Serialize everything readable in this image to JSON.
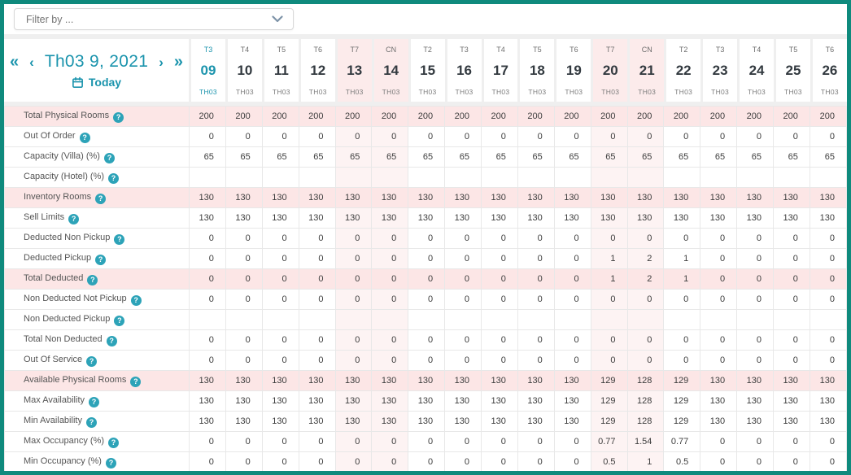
{
  "colors": {
    "frame_border": "#0f8a7d",
    "accent": "#1b94ad",
    "highlight_row": "#fce6e6",
    "weekend_header": "#fcebeb",
    "weekend_cell": "#fdf3f3"
  },
  "filter": {
    "placeholder": "Filter by ..."
  },
  "nav": {
    "fast_backward": "«",
    "prev": "‹",
    "title": "Th03 9, 2021",
    "next": "›",
    "fast_forward": "»",
    "today_label": "Today"
  },
  "help_icon": "?",
  "columns": [
    {
      "dow": "T3",
      "day": "09",
      "month": "TH03",
      "today": true,
      "weekend": false
    },
    {
      "dow": "T4",
      "day": "10",
      "month": "TH03",
      "today": false,
      "weekend": false
    },
    {
      "dow": "T5",
      "day": "11",
      "month": "TH03",
      "today": false,
      "weekend": false
    },
    {
      "dow": "T6",
      "day": "12",
      "month": "TH03",
      "today": false,
      "weekend": false
    },
    {
      "dow": "T7",
      "day": "13",
      "month": "TH03",
      "today": false,
      "weekend": true
    },
    {
      "dow": "CN",
      "day": "14",
      "month": "TH03",
      "today": false,
      "weekend": true
    },
    {
      "dow": "T2",
      "day": "15",
      "month": "TH03",
      "today": false,
      "weekend": false
    },
    {
      "dow": "T3",
      "day": "16",
      "month": "TH03",
      "today": false,
      "weekend": false
    },
    {
      "dow": "T4",
      "day": "17",
      "month": "TH03",
      "today": false,
      "weekend": false
    },
    {
      "dow": "T5",
      "day": "18",
      "month": "TH03",
      "today": false,
      "weekend": false
    },
    {
      "dow": "T6",
      "day": "19",
      "month": "TH03",
      "today": false,
      "weekend": false
    },
    {
      "dow": "T7",
      "day": "20",
      "month": "TH03",
      "today": false,
      "weekend": true
    },
    {
      "dow": "CN",
      "day": "21",
      "month": "TH03",
      "today": false,
      "weekend": true
    },
    {
      "dow": "T2",
      "day": "22",
      "month": "TH03",
      "today": false,
      "weekend": false
    },
    {
      "dow": "T3",
      "day": "23",
      "month": "TH03",
      "today": false,
      "weekend": false
    },
    {
      "dow": "T4",
      "day": "24",
      "month": "TH03",
      "today": false,
      "weekend": false
    },
    {
      "dow": "T5",
      "day": "25",
      "month": "TH03",
      "today": false,
      "weekend": false
    },
    {
      "dow": "T6",
      "day": "26",
      "month": "TH03",
      "today": false,
      "weekend": false
    }
  ],
  "rows": [
    {
      "label": "Total Physical Rooms",
      "highlight": true,
      "values": [
        "200",
        "200",
        "200",
        "200",
        "200",
        "200",
        "200",
        "200",
        "200",
        "200",
        "200",
        "200",
        "200",
        "200",
        "200",
        "200",
        "200",
        "200"
      ]
    },
    {
      "label": "Out Of Order",
      "highlight": false,
      "values": [
        "0",
        "0",
        "0",
        "0",
        "0",
        "0",
        "0",
        "0",
        "0",
        "0",
        "0",
        "0",
        "0",
        "0",
        "0",
        "0",
        "0",
        "0"
      ]
    },
    {
      "label": "Capacity (Villa) (%)",
      "highlight": false,
      "values": [
        "65",
        "65",
        "65",
        "65",
        "65",
        "65",
        "65",
        "65",
        "65",
        "65",
        "65",
        "65",
        "65",
        "65",
        "65",
        "65",
        "65",
        "65"
      ]
    },
    {
      "label": "Capacity (Hotel) (%)",
      "highlight": false,
      "values": [
        "",
        "",
        "",
        "",
        "",
        "",
        "",
        "",
        "",
        "",
        "",
        "",
        "",
        "",
        "",
        "",
        "",
        ""
      ]
    },
    {
      "label": "Inventory Rooms",
      "highlight": true,
      "values": [
        "130",
        "130",
        "130",
        "130",
        "130",
        "130",
        "130",
        "130",
        "130",
        "130",
        "130",
        "130",
        "130",
        "130",
        "130",
        "130",
        "130",
        "130"
      ]
    },
    {
      "label": "Sell Limits",
      "highlight": false,
      "values": [
        "130",
        "130",
        "130",
        "130",
        "130",
        "130",
        "130",
        "130",
        "130",
        "130",
        "130",
        "130",
        "130",
        "130",
        "130",
        "130",
        "130",
        "130"
      ]
    },
    {
      "label": "Deducted Non Pickup",
      "highlight": false,
      "values": [
        "0",
        "0",
        "0",
        "0",
        "0",
        "0",
        "0",
        "0",
        "0",
        "0",
        "0",
        "0",
        "0",
        "0",
        "0",
        "0",
        "0",
        "0"
      ]
    },
    {
      "label": "Deducted Pickup",
      "highlight": false,
      "values": [
        "0",
        "0",
        "0",
        "0",
        "0",
        "0",
        "0",
        "0",
        "0",
        "0",
        "0",
        "1",
        "2",
        "1",
        "0",
        "0",
        "0",
        "0"
      ]
    },
    {
      "label": "Total Deducted",
      "highlight": true,
      "values": [
        "0",
        "0",
        "0",
        "0",
        "0",
        "0",
        "0",
        "0",
        "0",
        "0",
        "0",
        "1",
        "2",
        "1",
        "0",
        "0",
        "0",
        "0"
      ]
    },
    {
      "label": "Non Deducted Not Pickup",
      "highlight": false,
      "values": [
        "0",
        "0",
        "0",
        "0",
        "0",
        "0",
        "0",
        "0",
        "0",
        "0",
        "0",
        "0",
        "0",
        "0",
        "0",
        "0",
        "0",
        "0"
      ]
    },
    {
      "label": "Non Deducted Pickup",
      "highlight": false,
      "values": [
        "",
        "",
        "",
        "",
        "",
        "",
        "",
        "",
        "",
        "",
        "",
        "",
        "",
        "",
        "",
        "",
        "",
        ""
      ]
    },
    {
      "label": "Total Non Deducted",
      "highlight": false,
      "values": [
        "0",
        "0",
        "0",
        "0",
        "0",
        "0",
        "0",
        "0",
        "0",
        "0",
        "0",
        "0",
        "0",
        "0",
        "0",
        "0",
        "0",
        "0"
      ]
    },
    {
      "label": "Out Of Service",
      "highlight": false,
      "values": [
        "0",
        "0",
        "0",
        "0",
        "0",
        "0",
        "0",
        "0",
        "0",
        "0",
        "0",
        "0",
        "0",
        "0",
        "0",
        "0",
        "0",
        "0"
      ]
    },
    {
      "label": "Available Physical Rooms",
      "highlight": true,
      "values": [
        "130",
        "130",
        "130",
        "130",
        "130",
        "130",
        "130",
        "130",
        "130",
        "130",
        "130",
        "129",
        "128",
        "129",
        "130",
        "130",
        "130",
        "130"
      ]
    },
    {
      "label": "Max Availability",
      "highlight": false,
      "values": [
        "130",
        "130",
        "130",
        "130",
        "130",
        "130",
        "130",
        "130",
        "130",
        "130",
        "130",
        "129",
        "128",
        "129",
        "130",
        "130",
        "130",
        "130"
      ]
    },
    {
      "label": "Min Availability",
      "highlight": false,
      "values": [
        "130",
        "130",
        "130",
        "130",
        "130",
        "130",
        "130",
        "130",
        "130",
        "130",
        "130",
        "129",
        "128",
        "129",
        "130",
        "130",
        "130",
        "130"
      ]
    },
    {
      "label": "Max Occupancy (%)",
      "highlight": false,
      "values": [
        "0",
        "0",
        "0",
        "0",
        "0",
        "0",
        "0",
        "0",
        "0",
        "0",
        "0",
        "0.77",
        "1.54",
        "0.77",
        "0",
        "0",
        "0",
        "0"
      ]
    },
    {
      "label": "Min Occupancy (%)",
      "highlight": false,
      "values": [
        "0",
        "0",
        "0",
        "0",
        "0",
        "0",
        "0",
        "0",
        "0",
        "0",
        "0",
        "0.5",
        "1",
        "0.5",
        "0",
        "0",
        "0",
        "0"
      ]
    }
  ]
}
